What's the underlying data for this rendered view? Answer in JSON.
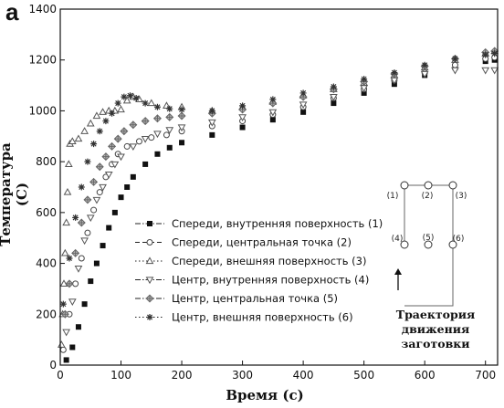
{
  "panel_label": "a",
  "chart_data": {
    "type": "scatter",
    "xlabel": "Время (с)",
    "ylabel": "Температура (С)",
    "xlim": [
      0,
      720
    ],
    "ylim": [
      0,
      1400
    ],
    "x_ticks": [
      0,
      100,
      200,
      300,
      400,
      500,
      600,
      700
    ],
    "y_ticks": [
      0,
      200,
      400,
      600,
      800,
      1000,
      1200,
      1400
    ],
    "legend_position": "center-right",
    "series": [
      {
        "name": "Спереди, внутренняя поверхность (1)",
        "marker": "square-filled",
        "line": "dash-dot",
        "points": [
          [
            10,
            20
          ],
          [
            20,
            70
          ],
          [
            30,
            150
          ],
          [
            40,
            240
          ],
          [
            50,
            330
          ],
          [
            60,
            400
          ],
          [
            70,
            470
          ],
          [
            80,
            540
          ],
          [
            90,
            600
          ],
          [
            100,
            660
          ],
          [
            110,
            700
          ],
          [
            120,
            740
          ],
          [
            140,
            790
          ],
          [
            160,
            830
          ],
          [
            180,
            855
          ],
          [
            200,
            875
          ],
          [
            250,
            905
          ],
          [
            300,
            935
          ],
          [
            350,
            965
          ],
          [
            400,
            995
          ],
          [
            450,
            1030
          ],
          [
            500,
            1070
          ],
          [
            550,
            1105
          ],
          [
            600,
            1140
          ],
          [
            650,
            1170
          ],
          [
            700,
            1195
          ],
          [
            715,
            1200
          ]
        ]
      },
      {
        "name": "Спереди, центральная точка (2)",
        "marker": "circle-open",
        "line": "dashed",
        "points": [
          [
            5,
            60
          ],
          [
            15,
            200
          ],
          [
            25,
            320
          ],
          [
            35,
            420
          ],
          [
            45,
            520
          ],
          [
            55,
            610
          ],
          [
            65,
            680
          ],
          [
            75,
            740
          ],
          [
            85,
            790
          ],
          [
            95,
            830
          ],
          [
            110,
            860
          ],
          [
            130,
            880
          ],
          [
            150,
            895
          ],
          [
            175,
            905
          ],
          [
            200,
            920
          ],
          [
            250,
            940
          ],
          [
            300,
            960
          ],
          [
            350,
            985
          ],
          [
            400,
            1015
          ],
          [
            450,
            1050
          ],
          [
            500,
            1085
          ],
          [
            550,
            1120
          ],
          [
            600,
            1150
          ],
          [
            650,
            1180
          ],
          [
            700,
            1205
          ],
          [
            715,
            1210
          ]
        ]
      },
      {
        "name": "Спереди, внешняя поверхность (3)",
        "marker": "triangle-up-open",
        "line": "dotted",
        "points": [
          [
            2,
            80
          ],
          [
            4,
            200
          ],
          [
            6,
            320
          ],
          [
            8,
            440
          ],
          [
            10,
            560
          ],
          [
            12,
            680
          ],
          [
            14,
            790
          ],
          [
            16,
            870
          ],
          [
            20,
            880
          ],
          [
            30,
            890
          ],
          [
            40,
            920
          ],
          [
            50,
            950
          ],
          [
            60,
            980
          ],
          [
            70,
            995
          ],
          [
            80,
            1000
          ],
          [
            90,
            1000
          ],
          [
            100,
            1005
          ],
          [
            110,
            1040
          ],
          [
            120,
            1055
          ],
          [
            130,
            1045
          ],
          [
            150,
            1030
          ],
          [
            175,
            1020
          ],
          [
            200,
            1015
          ],
          [
            250,
            1000
          ],
          [
            300,
            1015
          ],
          [
            350,
            1035
          ],
          [
            400,
            1060
          ],
          [
            450,
            1085
          ],
          [
            500,
            1110
          ],
          [
            550,
            1140
          ],
          [
            600,
            1170
          ],
          [
            650,
            1200
          ],
          [
            700,
            1225
          ],
          [
            715,
            1235
          ]
        ]
      },
      {
        "name": "Центр, внутренняя поверхность (4)",
        "marker": "triangle-down-open",
        "line": "dash-dot",
        "points": [
          [
            10,
            130
          ],
          [
            20,
            250
          ],
          [
            30,
            380
          ],
          [
            40,
            490
          ],
          [
            50,
            580
          ],
          [
            60,
            650
          ],
          [
            70,
            700
          ],
          [
            80,
            750
          ],
          [
            90,
            790
          ],
          [
            100,
            820
          ],
          [
            120,
            860
          ],
          [
            140,
            890
          ],
          [
            160,
            910
          ],
          [
            180,
            925
          ],
          [
            200,
            935
          ],
          [
            250,
            955
          ],
          [
            300,
            975
          ],
          [
            350,
            995
          ],
          [
            400,
            1025
          ],
          [
            450,
            1055
          ],
          [
            500,
            1090
          ],
          [
            550,
            1120
          ],
          [
            600,
            1145
          ],
          [
            650,
            1160
          ],
          [
            700,
            1160
          ],
          [
            715,
            1160
          ]
        ]
      },
      {
        "name": "Центр, центральная точка (5)",
        "marker": "plus-diamond",
        "line": "dash-dot",
        "points": [
          [
            8,
            200
          ],
          [
            15,
            320
          ],
          [
            25,
            440
          ],
          [
            35,
            560
          ],
          [
            45,
            650
          ],
          [
            55,
            720
          ],
          [
            65,
            780
          ],
          [
            75,
            820
          ],
          [
            85,
            860
          ],
          [
            95,
            890
          ],
          [
            105,
            920
          ],
          [
            120,
            945
          ],
          [
            140,
            960
          ],
          [
            160,
            970
          ],
          [
            180,
            975
          ],
          [
            200,
            980
          ],
          [
            250,
            990
          ],
          [
            300,
            1005
          ],
          [
            350,
            1030
          ],
          [
            400,
            1055
          ],
          [
            450,
            1085
          ],
          [
            500,
            1115
          ],
          [
            550,
            1145
          ],
          [
            600,
            1175
          ],
          [
            650,
            1205
          ],
          [
            700,
            1230
          ],
          [
            715,
            1235
          ]
        ]
      },
      {
        "name": "Центр, внешняя поверхность (6)",
        "marker": "asterisk",
        "line": "dotted",
        "points": [
          [
            5,
            240
          ],
          [
            15,
            420
          ],
          [
            25,
            580
          ],
          [
            35,
            700
          ],
          [
            45,
            800
          ],
          [
            55,
            870
          ],
          [
            65,
            920
          ],
          [
            75,
            960
          ],
          [
            85,
            990
          ],
          [
            95,
            1030
          ],
          [
            105,
            1055
          ],
          [
            115,
            1060
          ],
          [
            125,
            1050
          ],
          [
            140,
            1030
          ],
          [
            160,
            1015
          ],
          [
            180,
            1008
          ],
          [
            200,
            1005
          ],
          [
            250,
            1000
          ],
          [
            300,
            1020
          ],
          [
            350,
            1045
          ],
          [
            400,
            1070
          ],
          [
            450,
            1095
          ],
          [
            500,
            1125
          ],
          [
            550,
            1150
          ],
          [
            600,
            1180
          ],
          [
            650,
            1205
          ],
          [
            700,
            1220
          ],
          [
            715,
            1225
          ]
        ]
      }
    ],
    "inset": {
      "labels": [
        "(1)",
        "(2)",
        "(3)",
        "(4)",
        "(5)",
        "(6)"
      ],
      "caption_line1": "Траектория",
      "caption_line2": "движения заготовки"
    }
  }
}
